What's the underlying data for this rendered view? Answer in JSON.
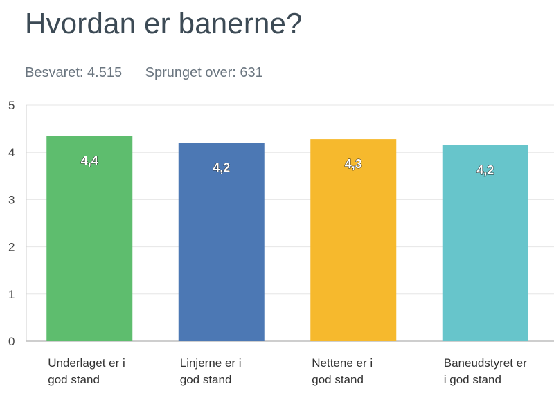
{
  "header": {
    "title": "Hvordan er banerne?",
    "answered": "Besvaret: 4.515",
    "skipped": "Sprunget over: 631"
  },
  "chart_data": {
    "type": "bar",
    "title": "Hvordan er banerne?",
    "categories": [
      [
        "Underlaget er i",
        "god stand"
      ],
      [
        "Linjerne er i",
        "god stand"
      ],
      [
        "Nettene er i",
        "god stand"
      ],
      [
        "Baneudstyret er",
        "i god stand"
      ]
    ],
    "values": [
      4.35,
      4.2,
      4.28,
      4.15
    ],
    "data_labels": [
      "4,4",
      "4,2",
      "4,3",
      "4,2"
    ],
    "colors": [
      "#5ebd6e",
      "#4c78b4",
      "#f6b92d",
      "#67c5cb"
    ],
    "ylim": [
      0,
      5
    ],
    "yticks": [
      "0",
      "1",
      "2",
      "3",
      "4",
      "5"
    ],
    "grid": true,
    "legend": "none"
  }
}
